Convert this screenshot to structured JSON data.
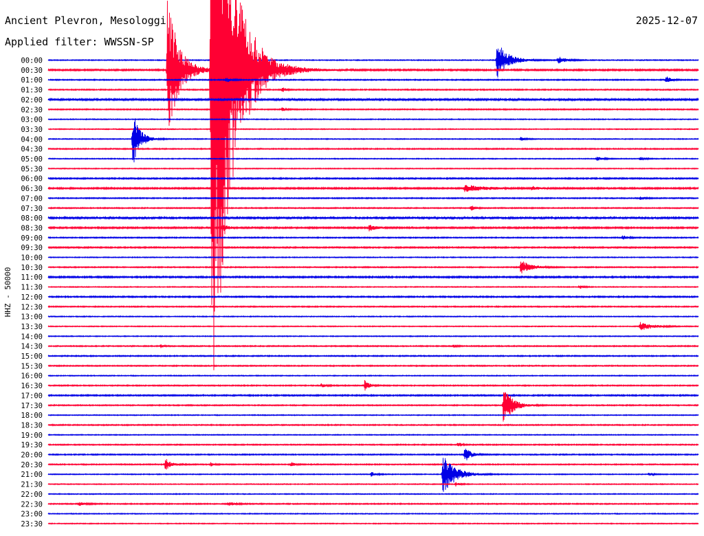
{
  "header": {
    "station": "Ancient Plevron, Mesologgi",
    "date": "2025-12-07",
    "filter": "Applied filter: WWSSN-SP"
  },
  "axis": {
    "side_label": "HHZ - 50000"
  },
  "colors": {
    "blue": "#0000e6",
    "red": "#ff0033",
    "text": "#000000",
    "background": "#ffffff"
  },
  "chart_data": {
    "type": "helicorder",
    "channel": "HHZ",
    "row_interval_minutes": 30,
    "time_labels": [
      "00:00",
      "00:30",
      "01:00",
      "01:30",
      "02:00",
      "02:30",
      "03:00",
      "03:30",
      "04:00",
      "04:30",
      "05:00",
      "05:30",
      "06:00",
      "06:30",
      "07:00",
      "07:30",
      "08:00",
      "08:30",
      "09:00",
      "09:30",
      "10:00",
      "10:30",
      "11:00",
      "11:30",
      "12:00",
      "12:30",
      "13:00",
      "13:30",
      "14:00",
      "14:30",
      "15:00",
      "15:30",
      "16:00",
      "16:30",
      "17:00",
      "17:30",
      "18:00",
      "18:30",
      "19:00",
      "19:30",
      "20:00",
      "20:30",
      "21:00",
      "21:30",
      "22:00",
      "22:30",
      "23:00",
      "23:30"
    ],
    "noise_level": [
      0.4,
      0.7,
      0.5,
      0.5,
      0.8,
      0.5,
      0.4,
      0.4,
      0.4,
      0.5,
      0.4,
      0.4,
      0.6,
      0.7,
      0.5,
      0.5,
      0.9,
      0.7,
      0.5,
      0.6,
      0.4,
      0.5,
      0.7,
      0.4,
      0.6,
      0.5,
      0.4,
      0.4,
      0.4,
      0.5,
      0.5,
      0.5,
      0.4,
      0.5,
      0.6,
      0.5,
      0.4,
      0.5,
      0.4,
      0.5,
      0.5,
      0.5,
      0.4,
      0.4,
      0.4,
      0.5,
      0.4,
      0.4
    ],
    "events": [
      {
        "row": 0,
        "minute": 20.7,
        "amp": 28,
        "dur": 1.3
      },
      {
        "row": 0,
        "minute": 23.5,
        "amp": 6,
        "dur": 0.9
      },
      {
        "row": 1,
        "minute": 5.5,
        "amp": 110,
        "dur": 1.3
      },
      {
        "row": 1,
        "minute": 7.5,
        "amp": 560,
        "dur": 2.2
      },
      {
        "row": 2,
        "minute": 28.5,
        "amp": 6,
        "dur": 0.5
      },
      {
        "row": 2,
        "minute": 8.2,
        "amp": 4,
        "dur": 0.6
      },
      {
        "row": 3,
        "minute": 10.8,
        "amp": 4,
        "dur": 0.4
      },
      {
        "row": 5,
        "minute": 10.8,
        "amp": 3,
        "dur": 0.4
      },
      {
        "row": 8,
        "minute": 3.9,
        "amp": 45,
        "dur": 0.8
      },
      {
        "row": 8,
        "minute": 21.8,
        "amp": 3,
        "dur": 0.5
      },
      {
        "row": 10,
        "minute": 25.3,
        "amp": 3,
        "dur": 0.7
      },
      {
        "row": 10,
        "minute": 27.3,
        "amp": 3,
        "dur": 0.6
      },
      {
        "row": 13,
        "minute": 19.2,
        "amp": 5,
        "dur": 2.5
      },
      {
        "row": 13,
        "minute": 22.3,
        "amp": 3,
        "dur": 0.8
      },
      {
        "row": 14,
        "minute": 27.3,
        "amp": 3,
        "dur": 0.5
      },
      {
        "row": 15,
        "minute": 19.5,
        "amp": 4,
        "dur": 0.5
      },
      {
        "row": 17,
        "minute": 8.0,
        "amp": 6,
        "dur": 0.7
      },
      {
        "row": 17,
        "minute": 14.8,
        "amp": 5,
        "dur": 0.8
      },
      {
        "row": 18,
        "minute": 26.5,
        "amp": 4,
        "dur": 0.5
      },
      {
        "row": 21,
        "minute": 21.8,
        "amp": 12,
        "dur": 1.1
      },
      {
        "row": 23,
        "minute": 24.5,
        "amp": 3,
        "dur": 0.5
      },
      {
        "row": 27,
        "minute": 27.3,
        "amp": 7,
        "dur": 1.4
      },
      {
        "row": 29,
        "minute": 5.2,
        "amp": 3,
        "dur": 0.3
      },
      {
        "row": 29,
        "minute": 18.7,
        "amp": 3,
        "dur": 0.3
      },
      {
        "row": 33,
        "minute": 14.6,
        "amp": 8,
        "dur": 0.5
      },
      {
        "row": 33,
        "minute": 12.6,
        "amp": 3,
        "dur": 0.6
      },
      {
        "row": 35,
        "minute": 21.0,
        "amp": 32,
        "dur": 1.0
      },
      {
        "row": 39,
        "minute": 18.9,
        "amp": 4,
        "dur": 0.4
      },
      {
        "row": 40,
        "minute": 19.2,
        "amp": 12,
        "dur": 0.7
      },
      {
        "row": 41,
        "minute": 5.4,
        "amp": 10,
        "dur": 0.6
      },
      {
        "row": 41,
        "minute": 7.5,
        "amp": 4,
        "dur": 0.4
      },
      {
        "row": 41,
        "minute": 11.2,
        "amp": 4,
        "dur": 0.4
      },
      {
        "row": 42,
        "minute": 18.2,
        "amp": 30,
        "dur": 1.4
      },
      {
        "row": 42,
        "minute": 14.9,
        "amp": 4,
        "dur": 0.5
      },
      {
        "row": 42,
        "minute": 27.7,
        "amp": 3,
        "dur": 0.4
      },
      {
        "row": 43,
        "minute": 18.8,
        "amp": 3,
        "dur": 0.5
      },
      {
        "row": 45,
        "minute": 1.4,
        "amp": 3,
        "dur": 0.8
      },
      {
        "row": 45,
        "minute": 8.3,
        "amp": 3,
        "dur": 0.8
      }
    ]
  }
}
